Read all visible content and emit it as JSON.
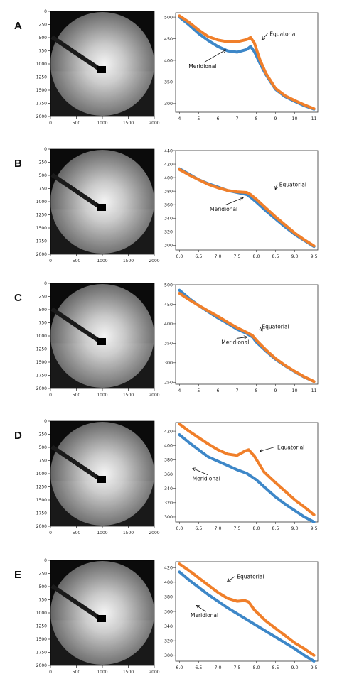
{
  "figure": {
    "panels": [
      {
        "letter": "A"
      },
      {
        "letter": "B"
      },
      {
        "letter": "C"
      },
      {
        "letter": "D"
      },
      {
        "letter": "E"
      }
    ],
    "image_ticks": [
      "0",
      "250",
      "500",
      "750",
      "1000",
      "1250",
      "1500",
      "1750",
      "2000"
    ],
    "image_xticks": [
      "0",
      "500",
      "1000",
      "1500",
      "2000"
    ]
  },
  "chart_data": [
    {
      "type": "line",
      "panel": "A",
      "xlim": [
        3.8,
        11.2
      ],
      "ylim": [
        280,
        510
      ],
      "xticks": [
        4,
        5,
        6,
        7,
        8,
        9,
        10,
        11
      ],
      "yticks": [
        300,
        350,
        400,
        450,
        500
      ],
      "series": [
        {
          "name": "Equatorial",
          "color": "#f07f2a",
          "x": [
            4,
            4.5,
            5,
            5.5,
            6,
            6.5,
            7,
            7.5,
            7.7,
            7.9,
            8.2,
            8.5,
            9,
            9.5,
            10,
            10.5,
            11
          ],
          "y": [
            503,
            488,
            470,
            455,
            447,
            443,
            443,
            448,
            453,
            440,
            400,
            370,
            335,
            318,
            307,
            297,
            288
          ]
        },
        {
          "name": "Meridional",
          "color": "#3d87c8",
          "x": [
            4,
            4.5,
            5,
            5.5,
            6,
            6.5,
            7,
            7.5,
            7.7,
            7.9,
            8.2,
            8.5,
            9,
            9.5,
            10,
            10.5,
            11
          ],
          "y": [
            500,
            482,
            462,
            446,
            432,
            422,
            419,
            425,
            432,
            420,
            392,
            367,
            333,
            316,
            305,
            295,
            287
          ]
        }
      ],
      "annotations": [
        {
          "text": "Equatorial",
          "x": 9.4,
          "y": 457,
          "arrow_to": [
            8.3,
            448
          ]
        },
        {
          "text": "Meridional",
          "x": 5.2,
          "y": 382,
          "arrow_to": [
            6.4,
            424
          ]
        }
      ]
    },
    {
      "type": "line",
      "panel": "B",
      "xlim": [
        5.9,
        9.6
      ],
      "ylim": [
        293,
        440
      ],
      "xticks": [
        6.0,
        6.5,
        7.0,
        7.5,
        8.0,
        8.5,
        9.0,
        9.5
      ],
      "xtick_labels": [
        "6.0",
        "6.5",
        "7.0",
        "7.5",
        "8.0",
        "8.5",
        "9.0",
        "9.5"
      ],
      "yticks": [
        300,
        320,
        340,
        360,
        380,
        400,
        420,
        440
      ],
      "series": [
        {
          "name": "Equatorial",
          "color": "#f07f2a",
          "x": [
            6.0,
            6.25,
            6.5,
            6.75,
            7.0,
            7.25,
            7.5,
            7.75,
            7.85,
            8.0,
            8.25,
            8.5,
            8.75,
            9.0,
            9.25,
            9.5
          ],
          "y": [
            412,
            404,
            397,
            390,
            385,
            381,
            379,
            378,
            375,
            368,
            355,
            342,
            330,
            318,
            308,
            299
          ]
        },
        {
          "name": "Meridional",
          "color": "#3d87c8",
          "x": [
            6.0,
            6.25,
            6.5,
            6.75,
            7.0,
            7.25,
            7.5,
            7.75,
            7.85,
            8.0,
            8.25,
            8.5,
            8.75,
            9.0,
            9.25,
            9.5
          ],
          "y": [
            413,
            405,
            397,
            391,
            386,
            381,
            378,
            375,
            371,
            364,
            351,
            339,
            327,
            316,
            307,
            298
          ]
        }
      ],
      "annotations": [
        {
          "text": "Equatorial",
          "x": 8.95,
          "y": 387,
          "arrow_to": [
            8.5,
            383
          ]
        },
        {
          "text": "Meridional",
          "x": 7.15,
          "y": 351,
          "arrow_to": [
            7.65,
            370
          ]
        }
      ]
    },
    {
      "type": "line",
      "panel": "C",
      "xlim": [
        3.8,
        11.2
      ],
      "ylim": [
        245,
        500
      ],
      "xticks": [
        4,
        5,
        6,
        7,
        8,
        9,
        10,
        11
      ],
      "yticks": [
        250,
        300,
        350,
        400,
        450,
        500
      ],
      "series": [
        {
          "name": "Equatorial",
          "color": "#f07f2a",
          "x": [
            4,
            4.5,
            5,
            5.5,
            6,
            6.5,
            7,
            7.5,
            7.8,
            8.0,
            8.5,
            9,
            9.5,
            10,
            10.5,
            11
          ],
          "y": [
            478,
            462,
            447,
            433,
            419,
            404,
            390,
            378,
            370,
            358,
            333,
            311,
            293,
            278,
            264,
            252
          ]
        },
        {
          "name": "Meridional",
          "color": "#3d87c8",
          "x": [
            4,
            4.5,
            5,
            5.5,
            6,
            6.5,
            7,
            7.5,
            7.8,
            8.0,
            8.5,
            9,
            9.5,
            10,
            10.5,
            11
          ],
          "y": [
            486,
            465,
            447,
            431,
            415,
            401,
            386,
            375,
            366,
            353,
            330,
            309,
            292,
            277,
            263,
            252
          ]
        }
      ],
      "annotations": [
        {
          "text": "Equatorial",
          "x": 9.0,
          "y": 388,
          "arrow_to": [
            8.3,
            382
          ]
        },
        {
          "text": "Meridional",
          "x": 6.9,
          "y": 348,
          "arrow_to": [
            7.5,
            366
          ]
        }
      ]
    },
    {
      "type": "line",
      "panel": "D",
      "xlim": [
        5.9,
        9.6
      ],
      "ylim": [
        293,
        432
      ],
      "xticks": [
        6.0,
        6.5,
        7.0,
        7.5,
        8.0,
        8.5,
        9.0,
        9.5
      ],
      "xtick_labels": [
        "6.0",
        "6.5",
        "7.0",
        "7.5",
        "8.0",
        "8.5",
        "9.0",
        "9.5"
      ],
      "yticks": [
        300,
        320,
        340,
        360,
        380,
        400,
        420
      ],
      "series": [
        {
          "name": "Equatorial",
          "color": "#f07f2a",
          "x": [
            6.0,
            6.25,
            6.5,
            6.75,
            7.0,
            7.25,
            7.5,
            7.7,
            7.8,
            7.95,
            8.2,
            8.5,
            8.75,
            9.0,
            9.25,
            9.5
          ],
          "y": [
            430,
            420,
            411,
            402,
            394,
            388,
            386,
            392,
            394,
            385,
            363,
            348,
            336,
            324,
            314,
            303
          ]
        },
        {
          "name": "Meridional",
          "color": "#3d87c8",
          "x": [
            6.0,
            6.25,
            6.5,
            6.75,
            7.0,
            7.25,
            7.5,
            7.75,
            8.0,
            8.25,
            8.5,
            8.75,
            9.0,
            9.25,
            9.5
          ],
          "y": [
            415,
            404,
            394,
            384,
            378,
            372,
            366,
            361,
            352,
            340,
            328,
            318,
            309,
            300,
            293
          ]
        }
      ],
      "annotations": [
        {
          "text": "Equatorial",
          "x": 8.9,
          "y": 395,
          "arrow_to": [
            8.1,
            392
          ]
        },
        {
          "text": "Meridional",
          "x": 6.7,
          "y": 351,
          "arrow_to": [
            6.35,
            368
          ]
        }
      ]
    },
    {
      "type": "line",
      "panel": "E",
      "xlim": [
        5.9,
        9.6
      ],
      "ylim": [
        292,
        428
      ],
      "xticks": [
        6.0,
        6.5,
        7.0,
        7.5,
        8.0,
        8.5,
        9.0,
        9.5
      ],
      "xtick_labels": [
        "6.0",
        "6.5",
        "7.0",
        "7.5",
        "8.0",
        "8.5",
        "9.0",
        "9.5"
      ],
      "yticks": [
        300,
        320,
        340,
        360,
        380,
        400,
        420
      ],
      "series": [
        {
          "name": "Equatorial",
          "color": "#f07f2a",
          "x": [
            6.0,
            6.25,
            6.5,
            6.75,
            7.0,
            7.25,
            7.5,
            7.7,
            7.8,
            7.95,
            8.25,
            8.5,
            8.75,
            9.0,
            9.25,
            9.5
          ],
          "y": [
            425,
            416,
            406,
            396,
            386,
            378,
            374,
            375,
            373,
            362,
            347,
            337,
            327,
            317,
            309,
            300
          ]
        },
        {
          "name": "Meridional",
          "color": "#3d87c8",
          "x": [
            6.0,
            6.25,
            6.5,
            6.75,
            7.0,
            7.25,
            7.5,
            7.75,
            8.0,
            8.25,
            8.5,
            8.75,
            9.0,
            9.25,
            9.5
          ],
          "y": [
            414,
            403,
            393,
            383,
            374,
            365,
            357,
            349,
            341,
            333,
            325,
            317,
            309,
            300,
            292
          ]
        }
      ],
      "annotations": [
        {
          "text": "Equatorial",
          "x": 7.85,
          "y": 405,
          "arrow_to": [
            7.25,
            401
          ]
        },
        {
          "text": "Meridional",
          "x": 6.65,
          "y": 352,
          "arrow_to": [
            6.45,
            368
          ]
        }
      ]
    }
  ]
}
